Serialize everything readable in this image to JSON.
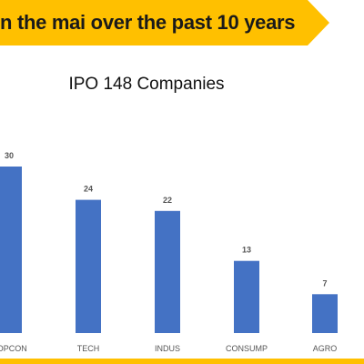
{
  "banner": {
    "text": "n the mai over the past 10 years",
    "color": "#FFC000"
  },
  "chart_data": {
    "type": "bar",
    "title": "IPO 148 Companies",
    "xlabel": "",
    "ylabel": "",
    "categories": [
      "ROPCON",
      "TECH",
      "INDUS",
      "CONSUMP",
      "AGRO"
    ],
    "values": [
      30,
      24,
      22,
      13,
      7
    ],
    "ylim": [
      0,
      35
    ],
    "grid": false,
    "bar_color": "#4472C4"
  },
  "footer_bar_color": "#FFC000"
}
